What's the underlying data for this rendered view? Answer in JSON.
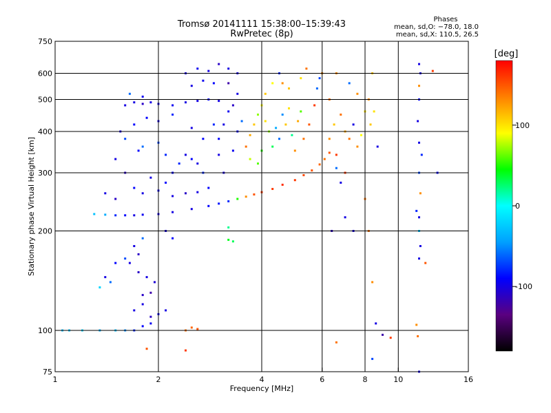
{
  "chart_data": {
    "type": "scatter",
    "title_line1": "Tromsø 20141111 15:38:00–15:39:43",
    "title_line2": "RwPretec (8p)",
    "stats": {
      "heading": "Phases",
      "line_o": "mean, sd,O: −78.0, 18.0",
      "line_x": "mean, sd,X: 110.5, 26.5"
    },
    "xlabel": "Frequency [MHz]",
    "ylabel": "Stationary phase Virtual Height [km]",
    "xscale": "log",
    "yscale": "log",
    "xlim": [
      1,
      16
    ],
    "ylim": [
      75,
      750
    ],
    "x_ticks": [
      1,
      2,
      4,
      6,
      8,
      10,
      16
    ],
    "y_ticks": [
      75,
      100,
      200,
      300,
      400,
      500,
      600,
      750
    ],
    "grid": true,
    "colorbar": {
      "label": "[deg]",
      "range": [
        -180,
        180
      ],
      "ticks": [
        100,
        0,
        -100
      ],
      "colors": [
        "#000000",
        "#5a0080",
        "#0000ff",
        "#00a0ff",
        "#00ffff",
        "#00ff00",
        "#ffff00",
        "#ff8000",
        "#ff0000"
      ]
    },
    "series": [
      {
        "values": [
          [
            1.05,
            100,
            -30
          ],
          [
            1.1,
            100,
            -25
          ],
          [
            1.2,
            100,
            -20
          ],
          [
            1.35,
            100,
            -35
          ],
          [
            1.5,
            100,
            -30
          ],
          [
            1.6,
            100,
            -50
          ],
          [
            1.7,
            100,
            -80
          ],
          [
            1.8,
            103,
            -90
          ],
          [
            1.9,
            105,
            -95
          ],
          [
            1.7,
            115,
            -100
          ],
          [
            1.8,
            120,
            -100
          ],
          [
            1.9,
            110,
            -110
          ],
          [
            2.0,
            112,
            -95
          ],
          [
            2.1,
            115,
            -100
          ],
          [
            1.8,
            128,
            -110
          ],
          [
            1.9,
            130,
            -120
          ],
          [
            1.95,
            140,
            -105
          ],
          [
            1.4,
            145,
            -100
          ],
          [
            1.45,
            140,
            -60
          ],
          [
            1.5,
            160,
            -90
          ],
          [
            1.6,
            165,
            -70
          ],
          [
            1.65,
            160,
            -100
          ],
          [
            1.35,
            135,
            -20
          ],
          [
            1.75,
            150,
            -110
          ],
          [
            1.85,
            145,
            -100
          ],
          [
            1.3,
            225,
            -30
          ],
          [
            1.4,
            224,
            -40
          ],
          [
            1.5,
            223,
            -80
          ],
          [
            1.6,
            223,
            -90
          ],
          [
            1.7,
            223,
            -100
          ],
          [
            1.8,
            224,
            -95
          ],
          [
            2.0,
            225,
            -100
          ],
          [
            2.2,
            228,
            -100
          ],
          [
            2.5,
            233,
            -100
          ],
          [
            2.8,
            238,
            -90
          ],
          [
            3.0,
            242,
            -85
          ],
          [
            3.2,
            246,
            -80
          ],
          [
            3.4,
            250,
            50
          ],
          [
            3.6,
            254,
            130
          ],
          [
            3.8,
            258,
            150
          ],
          [
            4.0,
            262,
            160
          ],
          [
            4.3,
            268,
            160
          ],
          [
            4.6,
            276,
            165
          ],
          [
            5.0,
            285,
            160
          ],
          [
            5.3,
            295,
            155
          ],
          [
            5.6,
            305,
            150
          ],
          [
            5.9,
            318,
            145
          ],
          [
            6.1,
            330,
            140
          ],
          [
            6.3,
            345,
            150
          ],
          [
            1.6,
            480,
            -100
          ],
          [
            1.7,
            490,
            -100
          ],
          [
            1.8,
            485,
            -110
          ],
          [
            1.9,
            490,
            -100
          ],
          [
            2.0,
            485,
            -100
          ],
          [
            2.2,
            480,
            -95
          ],
          [
            2.4,
            490,
            -100
          ],
          [
            2.6,
            495,
            -100
          ],
          [
            2.8,
            500,
            -90
          ],
          [
            3.0,
            495,
            -100
          ],
          [
            1.65,
            520,
            -60
          ],
          [
            1.8,
            510,
            -95
          ],
          [
            2.4,
            600,
            -100
          ],
          [
            2.6,
            620,
            -95
          ],
          [
            2.8,
            610,
            -100
          ],
          [
            3.0,
            640,
            -110
          ],
          [
            3.2,
            620,
            -100
          ],
          [
            2.5,
            550,
            -100
          ],
          [
            2.7,
            570,
            -95
          ],
          [
            2.9,
            560,
            -90
          ],
          [
            3.0,
            380,
            -90
          ],
          [
            3.1,
            420,
            -100
          ],
          [
            3.2,
            460,
            -95
          ],
          [
            3.0,
            340,
            -100
          ],
          [
            3.1,
            300,
            -100
          ],
          [
            3.3,
            350,
            -95
          ],
          [
            3.4,
            400,
            -90
          ],
          [
            3.5,
            430,
            -60
          ],
          [
            3.3,
            480,
            -110
          ],
          [
            3.4,
            520,
            -100
          ],
          [
            3.2,
            560,
            -120
          ],
          [
            3.4,
            600,
            -100
          ],
          [
            3.6,
            360,
            140
          ],
          [
            3.7,
            390,
            120
          ],
          [
            3.8,
            420,
            110
          ],
          [
            3.9,
            450,
            70
          ],
          [
            4.0,
            480,
            90
          ],
          [
            4.1,
            430,
            100
          ],
          [
            4.2,
            400,
            70
          ],
          [
            4.0,
            350,
            50
          ],
          [
            3.9,
            320,
            60
          ],
          [
            3.7,
            330,
            80
          ],
          [
            4.3,
            360,
            30
          ],
          [
            4.4,
            410,
            -40
          ],
          [
            4.5,
            380,
            -60
          ],
          [
            4.6,
            450,
            -50
          ],
          [
            4.7,
            420,
            110
          ],
          [
            4.8,
            470,
            100
          ],
          [
            4.9,
            390,
            20
          ],
          [
            5.0,
            350,
            130
          ],
          [
            5.1,
            430,
            120
          ],
          [
            5.2,
            460,
            60
          ],
          [
            5.3,
            380,
            140
          ],
          [
            5.5,
            420,
            150
          ],
          [
            5.7,
            480,
            160
          ],
          [
            5.8,
            540,
            -60
          ],
          [
            5.9,
            580,
            -70
          ],
          [
            6.0,
            600,
            130
          ],
          [
            4.1,
            520,
            110
          ],
          [
            4.3,
            560,
            90
          ],
          [
            4.5,
            600,
            -80
          ],
          [
            4.6,
            560,
            130
          ],
          [
            4.8,
            540,
            110
          ],
          [
            5.2,
            580,
            100
          ],
          [
            5.4,
            620,
            140
          ],
          [
            1.8,
            360,
            -60
          ],
          [
            2.0,
            370,
            -70
          ],
          [
            2.1,
            340,
            -80
          ],
          [
            2.2,
            300,
            -90
          ],
          [
            2.3,
            320,
            -80
          ],
          [
            2.4,
            340,
            -100
          ],
          [
            2.5,
            330,
            -90
          ],
          [
            2.6,
            320,
            -100
          ],
          [
            2.7,
            300,
            -80
          ],
          [
            1.5,
            330,
            -100
          ],
          [
            1.6,
            300,
            -110
          ],
          [
            1.7,
            270,
            -90
          ],
          [
            1.8,
            260,
            -100
          ],
          [
            2.0,
            265,
            -95
          ],
          [
            2.2,
            255,
            -100
          ],
          [
            2.4,
            260,
            -110
          ],
          [
            2.6,
            262,
            -100
          ],
          [
            2.8,
            270,
            -90
          ],
          [
            1.9,
            290,
            -100
          ],
          [
            2.1,
            280,
            -90
          ],
          [
            1.4,
            260,
            -100
          ],
          [
            1.5,
            250,
            -110
          ],
          [
            1.55,
            400,
            -100
          ],
          [
            1.7,
            420,
            -90
          ],
          [
            1.85,
            440,
            -90
          ],
          [
            2.0,
            430,
            -100
          ],
          [
            2.2,
            450,
            -80
          ],
          [
            2.5,
            410,
            -100
          ],
          [
            2.7,
            380,
            -90
          ],
          [
            2.9,
            420,
            -80
          ],
          [
            1.6,
            380,
            -70
          ],
          [
            1.75,
            350,
            -90
          ],
          [
            2.1,
            200,
            -100
          ],
          [
            2.2,
            190,
            -90
          ],
          [
            1.7,
            180,
            -100
          ],
          [
            1.8,
            190,
            -60
          ],
          [
            1.75,
            170,
            -110
          ],
          [
            3.2,
            205,
            20
          ],
          [
            3.2,
            188,
            40
          ],
          [
            3.3,
            186,
            30
          ],
          [
            2.4,
            100,
            140
          ],
          [
            2.5,
            102,
            145
          ],
          [
            2.6,
            101,
            150
          ],
          [
            1.85,
            88,
            150
          ],
          [
            2.4,
            87,
            160
          ],
          [
            6.3,
            380,
            130
          ],
          [
            6.5,
            420,
            110
          ],
          [
            6.6,
            340,
            160
          ],
          [
            6.8,
            450,
            140
          ],
          [
            7.0,
            400,
            120
          ],
          [
            7.2,
            380,
            140
          ],
          [
            7.4,
            420,
            -100
          ],
          [
            7.6,
            360,
            130
          ],
          [
            7.8,
            390,
            90
          ],
          [
            8.0,
            460,
            100
          ],
          [
            8.3,
            420,
            110
          ],
          [
            8.5,
            460,
            100
          ],
          [
            8.2,
            500,
            130
          ],
          [
            8.4,
            600,
            110
          ],
          [
            8.7,
            360,
            -100
          ],
          [
            8.0,
            250,
            140
          ],
          [
            6.6,
            310,
            -60
          ],
          [
            6.8,
            280,
            -100
          ],
          [
            7.0,
            300,
            160
          ],
          [
            6.3,
            500,
            140
          ],
          [
            6.6,
            600,
            130
          ],
          [
            7.2,
            560,
            -60
          ],
          [
            7.6,
            520,
            130
          ],
          [
            8.2,
            200,
            140
          ],
          [
            8.4,
            140,
            130
          ],
          [
            8.6,
            105,
            -100
          ],
          [
            9.0,
            97,
            -120
          ],
          [
            9.5,
            95,
            160
          ],
          [
            6.6,
            92,
            140
          ],
          [
            6.4,
            200,
            -110
          ],
          [
            7.0,
            220,
            -100
          ],
          [
            7.4,
            200,
            -100
          ],
          [
            8.4,
            82,
            -70
          ],
          [
            11.5,
            640,
            -100
          ],
          [
            11.6,
            600,
            -100
          ],
          [
            11.5,
            550,
            130
          ],
          [
            11.5,
            500,
            -90
          ],
          [
            11.4,
            430,
            -100
          ],
          [
            11.5,
            370,
            -100
          ],
          [
            11.7,
            340,
            -80
          ],
          [
            11.5,
            300,
            -70
          ],
          [
            11.6,
            260,
            130
          ],
          [
            11.5,
            220,
            -100
          ],
          [
            11.5,
            200,
            -30
          ],
          [
            11.6,
            180,
            -100
          ],
          [
            11.5,
            165,
            -100
          ],
          [
            11.3,
            104,
            130
          ],
          [
            11.4,
            96,
            140
          ],
          [
            11.5,
            75,
            -100
          ],
          [
            13.0,
            300,
            -90
          ],
          [
            12.6,
            610,
            160
          ],
          [
            12.0,
            160,
            150
          ],
          [
            11.3,
            230,
            -80
          ]
        ]
      }
    ]
  }
}
